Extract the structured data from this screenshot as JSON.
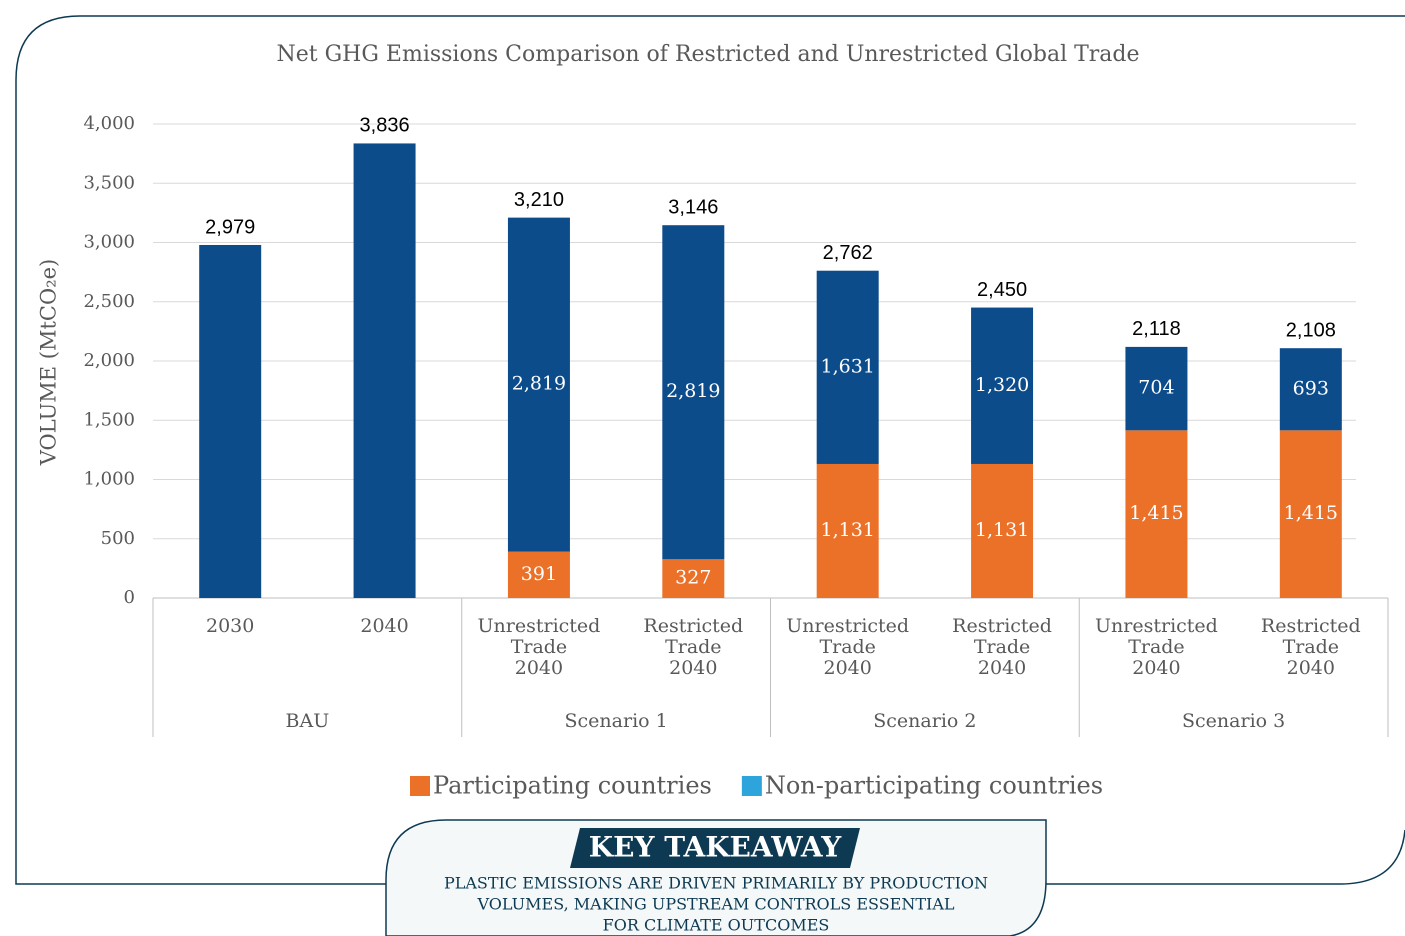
{
  "chart_data": {
    "type": "stacked_bar",
    "title": "Net GHG Emissions Comparison of Restricted and Unrestricted Global Trade",
    "y_label": "VOLUME (MtCO₂e)",
    "categories": [
      [
        "2030"
      ],
      [
        "2040"
      ],
      [
        "Unrestricted",
        "Trade",
        "2040"
      ],
      [
        "Restricted",
        "Trade",
        "2040"
      ],
      [
        "Unrestricted",
        "Trade",
        "2040"
      ],
      [
        "Restricted",
        "Trade",
        "2040"
      ],
      [
        "Unrestricted",
        "Trade",
        "2040"
      ],
      [
        "Restricted",
        "Trade",
        "2040"
      ]
    ],
    "group_labels": [
      "BAU",
      "Scenario 1",
      "Scenario 2",
      "Scenario 3"
    ],
    "series": [
      {
        "name": "Participating countries",
        "color": "#ec7128",
        "legend_color": "#ec7128",
        "values": [
          null,
          null,
          391,
          327,
          1131,
          1131,
          1415,
          1415
        ],
        "value_labels": [
          null,
          null,
          "391",
          "327",
          "1,131",
          "1,131",
          "1,415",
          "1,415"
        ]
      },
      {
        "name": "Non-participating countries",
        "color": "#0d4c8b",
        "legend_color": "#2ea4dd",
        "values": [
          2979,
          3836,
          2819,
          2819,
          1631,
          1320,
          704,
          693
        ],
        "value_labels": [
          null,
          null,
          "2,819",
          "2,819",
          "1,631",
          "1,320",
          "704",
          "693"
        ]
      }
    ],
    "total_labels": [
      "2,979",
      "3,836",
      "3,210",
      "3,146",
      "2,762",
      "2,450",
      "2,118",
      "2,108"
    ],
    "ylim": [
      0,
      4000
    ],
    "yticks": [
      0,
      500,
      {
        "value": 1000,
        "label": "1,000"
      },
      {
        "value": 1500,
        "label": "1,500"
      },
      {
        "value": 2000,
        "label": "2,000"
      },
      {
        "value": 2500,
        "label": "2,500"
      },
      {
        "value": 3000,
        "label": "3,000"
      },
      {
        "value": 3500,
        "label": "3,500"
      },
      {
        "value": 4000,
        "label": "4,000"
      }
    ],
    "grid": true,
    "legend": "bottom"
  },
  "takeaway": {
    "heading": "KEY TAKEAWAY",
    "lines": [
      "PLASTIC EMISSIONS ARE DRIVEN PRIMARILY BY PRODUCTION",
      "VOLUMES, MAKING UPSTREAM CONTROLS ESSENTIAL",
      "FOR CLIMATE OUTCOMES"
    ]
  }
}
